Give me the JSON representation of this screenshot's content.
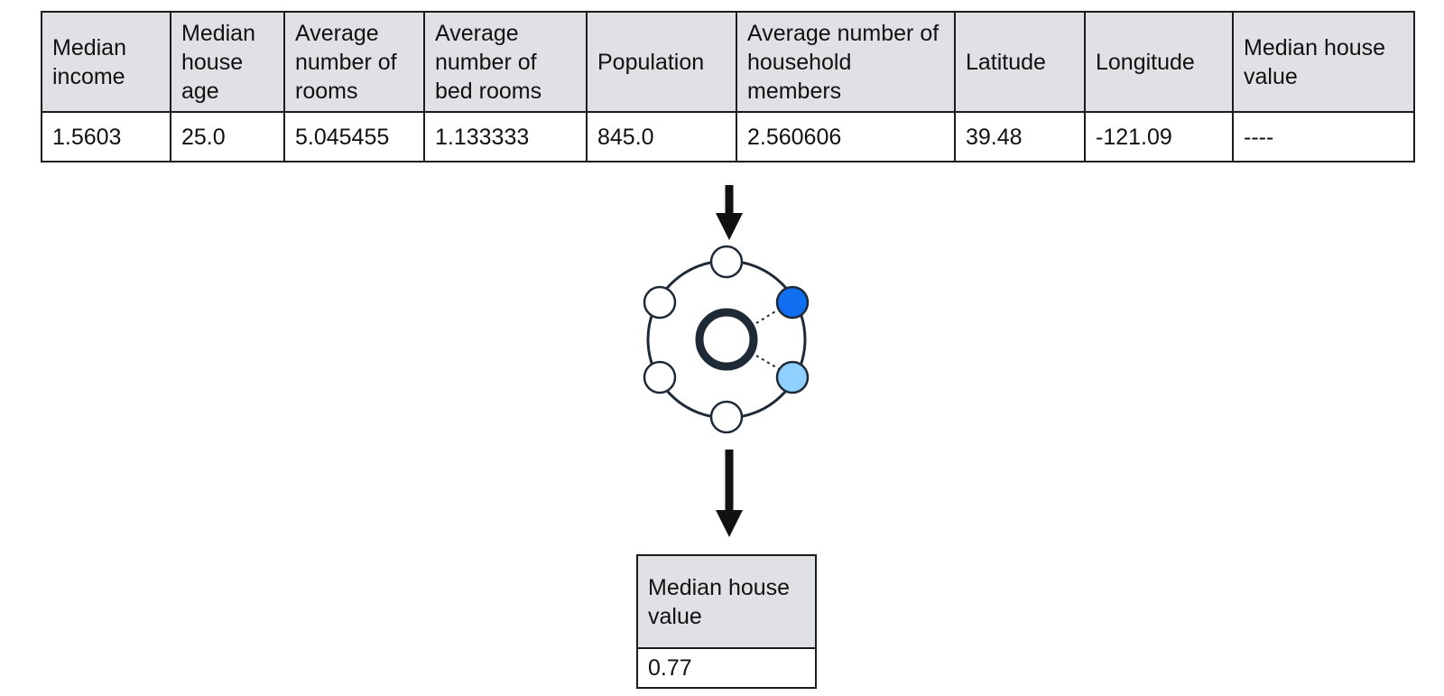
{
  "input_table": {
    "headers": [
      "Median income",
      "Median house age",
      "Average number of rooms",
      "Average number of bed rooms",
      "Population",
      "Average number of household members",
      "Latitude",
      "Longitude",
      "Median house value"
    ],
    "row": [
      "1.5603",
      "25.0",
      "5.045455",
      "1.133333",
      "845.0",
      "2.560606",
      "39.48",
      "-121.09",
      "----"
    ]
  },
  "output_table": {
    "header": "Median house value",
    "value": "0.77"
  },
  "colors": {
    "header_bg": "#dfe1e5",
    "border": "#1c1c1c",
    "model_ring": "#1f2a37",
    "node_active_dark": "#0f6ff0",
    "node_active_light": "#8fd0ff",
    "node_inactive": "#ffffff"
  },
  "icons": {
    "model": "ml-model-icon",
    "flow_arrow": "arrow-down-icon"
  }
}
